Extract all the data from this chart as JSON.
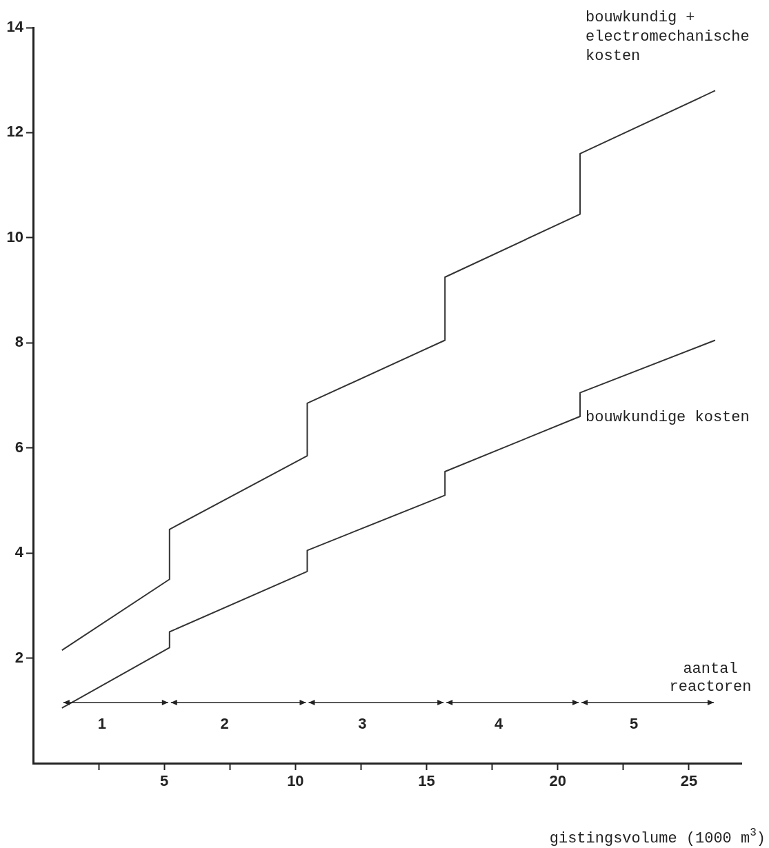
{
  "chart_data": {
    "type": "line",
    "xlabel": "gistingsvolume (1000 m$^{3}$)",
    "xlim": [
      0,
      27
    ],
    "xticks": [
      {
        "value": 2.5,
        "label": null
      },
      5,
      {
        "value": 7.5,
        "label": null
      },
      10,
      {
        "value": 12.5,
        "label": null
      },
      15,
      {
        "value": 17.5,
        "label": null
      },
      20,
      {
        "value": 22.5,
        "label": null
      },
      25
    ],
    "ylim": [
      0,
      14
    ],
    "yticks": [
      2,
      4,
      6,
      8,
      10,
      12,
      14
    ],
    "series": [
      {
        "name": "bouwkundig + electromechanische kosten",
        "color": "#333333",
        "x": [
          1.1,
          5.2,
          5.2,
          10.45,
          10.45,
          15.7,
          15.7,
          20.85,
          20.85,
          26.0
        ],
        "values": [
          2.15,
          3.5,
          4.45,
          5.85,
          6.85,
          8.05,
          9.25,
          10.45,
          11.6,
          12.8
        ]
      },
      {
        "name": "bouwkundige kosten",
        "color": "#333333",
        "x": [
          1.1,
          5.2,
          5.2,
          10.45,
          10.45,
          15.7,
          15.7,
          20.85,
          20.85,
          26.0
        ],
        "values": [
          1.05,
          2.2,
          2.5,
          3.65,
          4.05,
          5.1,
          5.55,
          6.6,
          7.05,
          8.05
        ]
      }
    ],
    "annotations": [
      "aantal reactoren",
      "1",
      "2",
      "3",
      "4",
      "5"
    ],
    "grid": false,
    "legend": false,
    "marker": "none",
    "line_style": "solid"
  }
}
